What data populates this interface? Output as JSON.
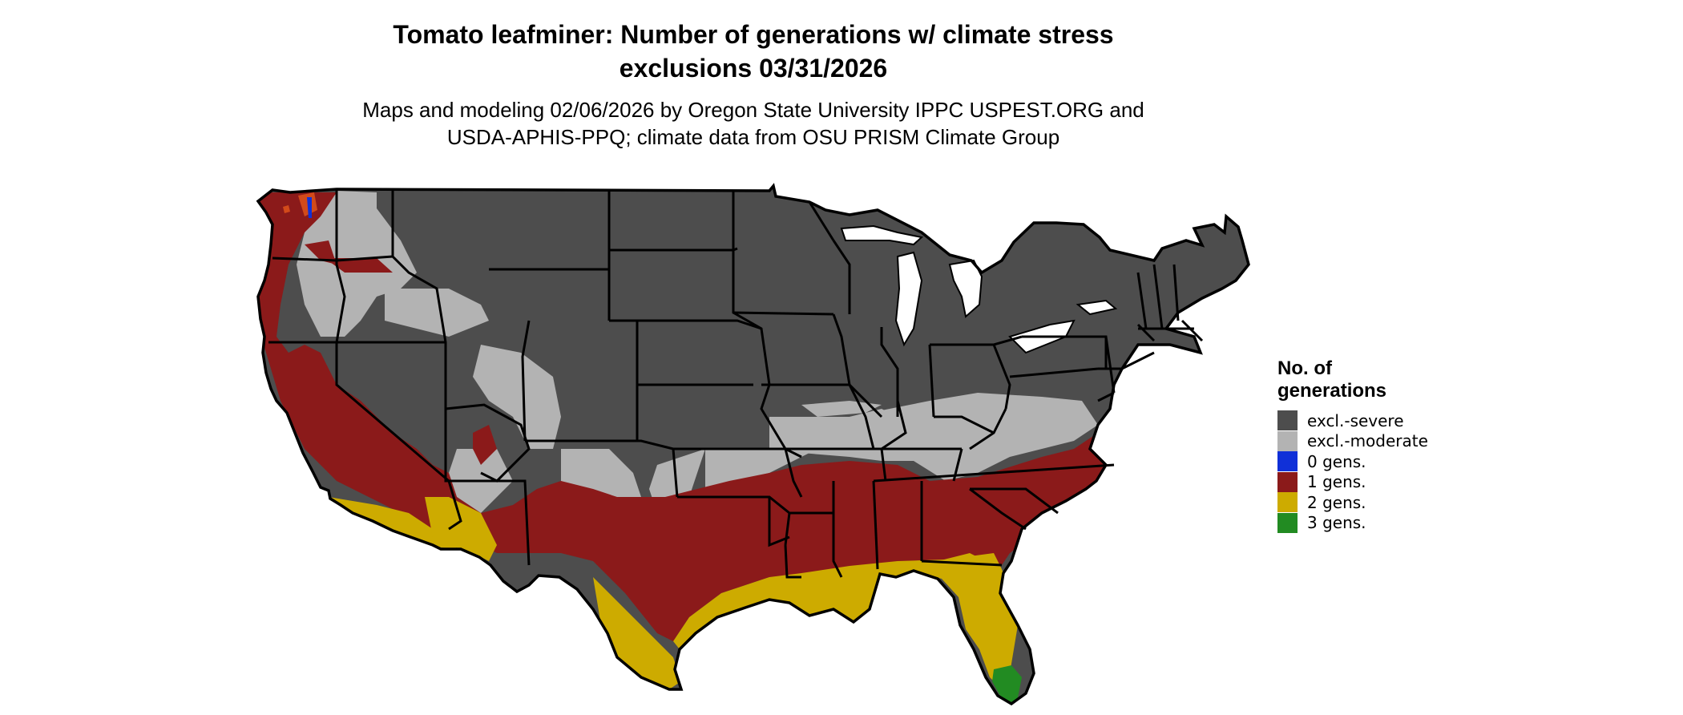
{
  "title": {
    "line1": "Tomato leafminer: Number of generations w/ climate stress",
    "line2": "exclusions 03/31/2026"
  },
  "subtitle": {
    "line1": "Maps and modeling 02/06/2026 by Oregon State University IPPC USPEST.ORG and",
    "line2": "USDA-APHIS-PPQ; climate data from OSU PRISM Climate Group"
  },
  "legend": {
    "title_line1": "No. of",
    "title_line2": "generations",
    "items": [
      {
        "label": "excl.-severe",
        "color": "#4d4d4d"
      },
      {
        "label": "excl.-moderate",
        "color": "#b3b3b3"
      },
      {
        "label": "0 gens.",
        "color": "#1030d8"
      },
      {
        "label": "1 gens.",
        "color": "#8b1a1a"
      },
      {
        "label": "2 gens.",
        "color": "#cdab00"
      },
      {
        "label": "3 gens.",
        "color": "#228b22"
      }
    ]
  }
}
